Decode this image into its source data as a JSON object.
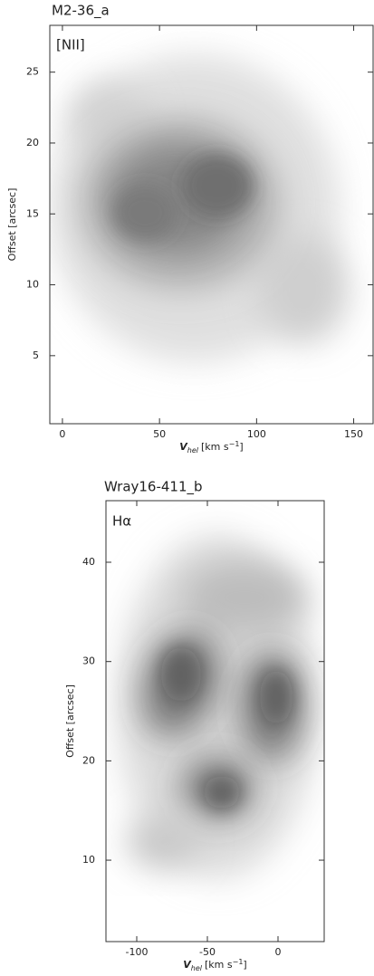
{
  "chart_data": [
    {
      "type": "position-velocity",
      "title": "M2-36_a",
      "line_label": "[NII]",
      "x_label": {
        "symbol": "V",
        "subscript": "hel",
        "unit": "[km s",
        "exponent": "−1",
        "close": "]"
      },
      "y_label": "Offset [arcsec]",
      "xlim": [
        -6.5,
        160
      ],
      "xticks": [
        0,
        50,
        100,
        150
      ],
      "ylim": [
        0.2,
        28.3
      ],
      "yticks": [
        5,
        10,
        15,
        20,
        25
      ]
    },
    {
      "type": "position-velocity",
      "title": "Wray16-411_b",
      "line_label": "Hα",
      "x_label": {
        "symbol": "V",
        "subscript": "hel",
        "unit": "[km s",
        "exponent": "−1",
        "close": "]"
      },
      "y_label": "Offset [arcsec]",
      "xlim": [
        -121.8,
        32.7
      ],
      "xticks": [
        -100,
        -50,
        0
      ],
      "ylim": [
        1.8,
        46.2
      ],
      "yticks": [
        10,
        20,
        30,
        40
      ]
    }
  ]
}
